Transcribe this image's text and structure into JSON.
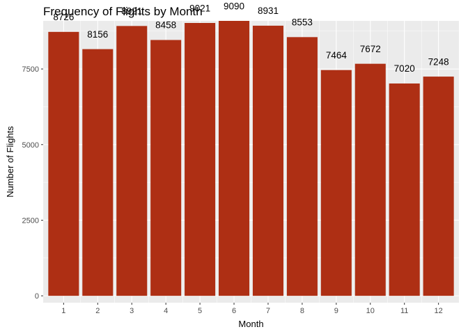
{
  "chart_data": {
    "type": "bar",
    "title": "Frequency of Flights by Month",
    "xlabel": "Month",
    "ylabel": "Number of Flights",
    "categories": [
      "1",
      "2",
      "3",
      "4",
      "5",
      "6",
      "7",
      "8",
      "9",
      "10",
      "11",
      "12"
    ],
    "values": [
      8726,
      8156,
      8921,
      8458,
      9021,
      9090,
      8931,
      8553,
      7464,
      7672,
      7020,
      7248
    ],
    "yticks": [
      0,
      2500,
      5000,
      7500
    ],
    "ylim": [
      -227,
      9090
    ],
    "grid": true,
    "legend": "none",
    "colors": {
      "bar": "#ae2f14",
      "panel": "#ebebeb",
      "grid": "#ffffff",
      "text": "#000000",
      "tick_text": "#4d4d4d"
    }
  }
}
